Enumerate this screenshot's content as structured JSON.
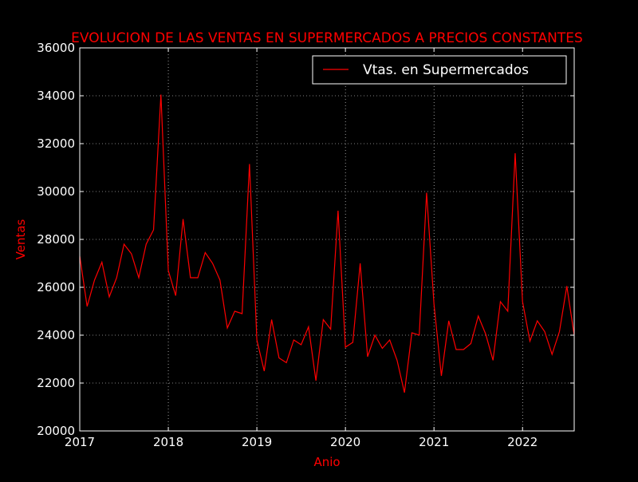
{
  "chart_data": {
    "type": "line",
    "title": "EVOLUCION DE LAS VENTAS EN SUPERMERCADOS A PRECIOS CONSTANTES",
    "xlabel": "Anio",
    "ylabel": "Ventas",
    "xlim": [
      2017.0,
      2022.5833
    ],
    "ylim": [
      20000,
      36000
    ],
    "x_ticks": [
      2017,
      2018,
      2019,
      2020,
      2021,
      2022
    ],
    "y_ticks": [
      20000,
      22000,
      24000,
      26000,
      28000,
      30000,
      32000,
      34000,
      36000
    ],
    "grid": true,
    "legend": {
      "position": "top-right"
    },
    "series": [
      {
        "name": "Vtas. en Supermercados",
        "color": "#ff0000",
        "start": 2017.0,
        "step": 0.083333,
        "values": [
          27300,
          25200,
          26300,
          27050,
          25600,
          26400,
          27800,
          27400,
          26400,
          27800,
          28400,
          34050,
          26700,
          25650,
          28850,
          26400,
          26400,
          27450,
          27000,
          26300,
          24300,
          25000,
          24900,
          31150,
          23800,
          22500,
          24650,
          23050,
          22850,
          23800,
          23600,
          24350,
          22100,
          24650,
          24250,
          29200,
          23500,
          23700,
          27000,
          23100,
          24000,
          23450,
          23800,
          22950,
          21600,
          24100,
          24000,
          29950,
          25300,
          22300,
          24600,
          23400,
          23400,
          23650,
          24800,
          24050,
          22950,
          25400,
          25000,
          31600,
          25400,
          23750,
          24600,
          24150,
          23200,
          24150,
          26050,
          24000
        ]
      }
    ]
  },
  "colors": {
    "background": "#000000",
    "axes_frame": "#ffffff",
    "tick_labels": "#ffffff",
    "title": "#ff0000",
    "axis_labels": "#ff0000",
    "line": "#ff0000",
    "grid": "#ffffff"
  }
}
